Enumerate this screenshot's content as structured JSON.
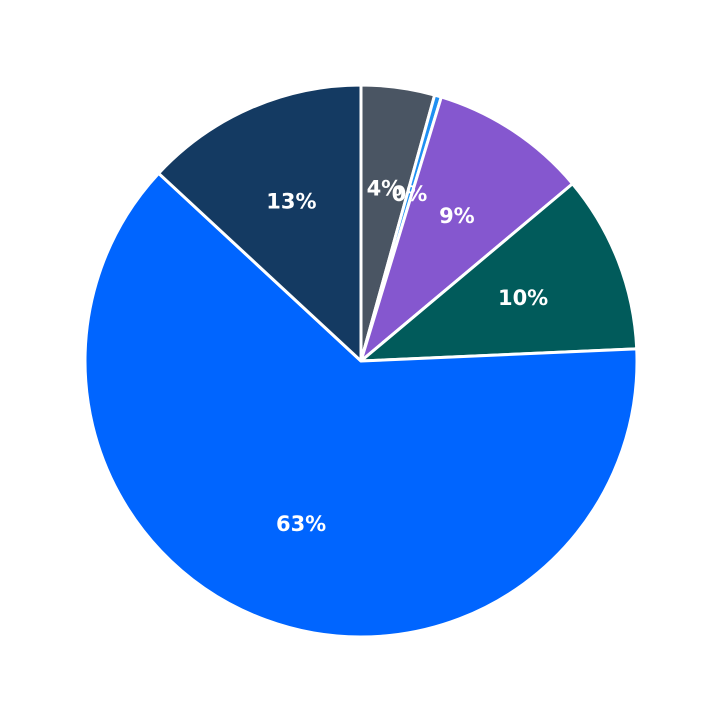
{
  "chart_data": {
    "type": "pie",
    "title": "",
    "start_angle": "12 o'clock",
    "direction": "clockwise",
    "legend": "none",
    "slices": [
      {
        "label": "4%",
        "value": 4.3,
        "color": "#4a5563"
      },
      {
        "label": "0%",
        "value": 0.4,
        "color": "#1f8ff2"
      },
      {
        "label": "9%",
        "value": 9.2,
        "color": "#8557cf"
      },
      {
        "label": "10%",
        "value": 10.4,
        "color": "#015b5b"
      },
      {
        "label": "63%",
        "value": 62.6,
        "color": "#0065ff"
      },
      {
        "label": "13%",
        "value": 13.1,
        "color": "#143a62"
      }
    ]
  }
}
